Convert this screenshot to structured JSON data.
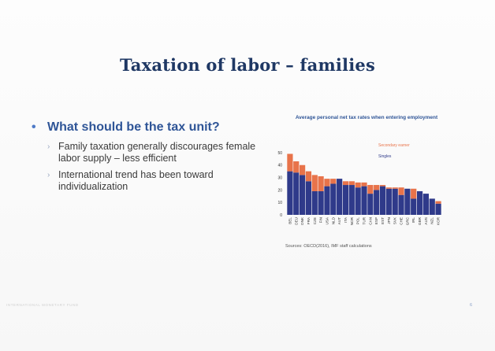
{
  "slide": {
    "title": "Taxation of labor – families",
    "main_bullet": "What should be the tax unit?",
    "sub_bullets": [
      "Family taxation generally discourages female labor supply – less efficient",
      "International trend has been toward individualization"
    ],
    "source": "Sources: OECD(2016), IMF staff calculations",
    "footer_left": "INTERNATIONAL MONETARY FUND",
    "page_number": "6"
  },
  "colors": {
    "singles": "#2f3a8a",
    "secondary_earner": "#e8734a",
    "title": "#1f3864"
  },
  "chart_data": {
    "type": "bar",
    "title": "Average personal net tax rates when entering employment",
    "stacked": true,
    "categories": [
      "BEL",
      "DEU",
      "DNK",
      "FRA",
      "CZE",
      "FIN",
      "USA",
      "NLD",
      "AUT",
      "ITA",
      "NOR",
      "POL",
      "TUR",
      "CAN",
      "ESP",
      "EST",
      "JPN",
      "SVK",
      "CHE",
      "GRC",
      "IRL",
      "GBR",
      "AUS",
      "NZL",
      "KOR"
    ],
    "series": [
      {
        "name": "Singles",
        "values": [
          35,
          34,
          32,
          27,
          19,
          19,
          23,
          25,
          29,
          24,
          24,
          22,
          23,
          17,
          20,
          23,
          21,
          21,
          16,
          21,
          13,
          19,
          17,
          13,
          9
        ]
      },
      {
        "name": "Secondary earner",
        "values": [
          14,
          9,
          8,
          8,
          13,
          12,
          6,
          4,
          0,
          3,
          3,
          4,
          3,
          7,
          4,
          1,
          1,
          1,
          6,
          0,
          8,
          0,
          0,
          0,
          2
        ]
      }
    ],
    "ylim": [
      0,
      55
    ],
    "yticks": [
      0,
      10,
      20,
      30,
      40,
      50
    ],
    "legend_position": "top-right",
    "grid": false
  }
}
